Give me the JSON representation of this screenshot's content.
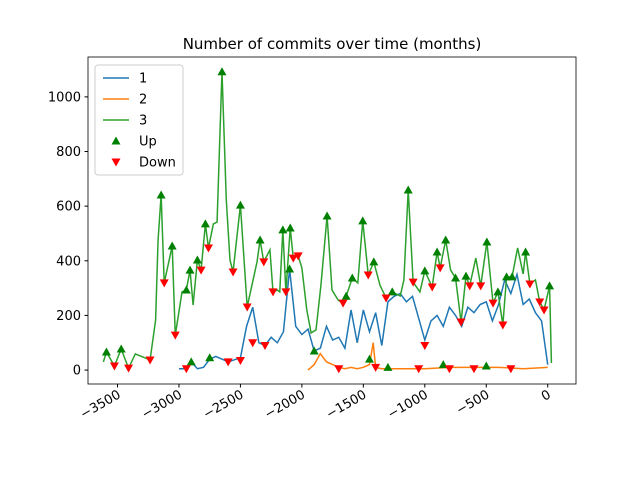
{
  "chart_data": {
    "type": "line",
    "title": "Number of commits over time (months)",
    "xlim": [
      -3740,
      230
    ],
    "ylim": [
      -51,
      1146
    ],
    "xticks": [
      {
        "value": -3500,
        "label": "−3500"
      },
      {
        "value": -3000,
        "label": "−3000"
      },
      {
        "value": -2500,
        "label": "−2500"
      },
      {
        "value": -2000,
        "label": "−2000"
      },
      {
        "value": -1500,
        "label": "−1500"
      },
      {
        "value": -1000,
        "label": "−1000"
      },
      {
        "value": -500,
        "label": "−500"
      },
      0
    ],
    "yticks": [
      0,
      200,
      400,
      600,
      800,
      1000
    ],
    "legend": "upper left",
    "series": [
      {
        "name": "1",
        "kind": "line",
        "color": "#1f77b4",
        "x": [
          -3000,
          -2940,
          -2900,
          -2850,
          -2800,
          -2750,
          -2700,
          -2600,
          -2500,
          -2450,
          -2400,
          -2350,
          -2300,
          -2250,
          -2200,
          -2150,
          -2100,
          -2050,
          -2000,
          -1950,
          -1900,
          -1850,
          -1800,
          -1750,
          -1700,
          -1650,
          -1600,
          -1550,
          -1500,
          -1450,
          -1400,
          -1350,
          -1300,
          -1250,
          -1200,
          -1150,
          -1100,
          -1050,
          -1000,
          -950,
          -900,
          -850,
          -800,
          -750,
          -700,
          -650,
          -600,
          -550,
          -500,
          -450,
          -400,
          -350,
          -300,
          -250,
          -200,
          -150,
          -100,
          -50,
          0
        ],
        "values": [
          5,
          5,
          30,
          5,
          10,
          40,
          50,
          30,
          45,
          160,
          230,
          100,
          90,
          120,
          100,
          140,
          370,
          160,
          130,
          150,
          70,
          80,
          160,
          110,
          120,
          80,
          220,
          100,
          220,
          140,
          210,
          90,
          250,
          270,
          280,
          250,
          270,
          190,
          110,
          180,
          200,
          160,
          230,
          200,
          160,
          230,
          210,
          240,
          250,
          180,
          240,
          330,
          280,
          350,
          240,
          260,
          210,
          180,
          20
        ]
      },
      {
        "name": "2",
        "kind": "line",
        "color": "#ff7f0e",
        "x": [
          -1950,
          -1900,
          -1850,
          -1800,
          -1750,
          -1700,
          -1650,
          -1600,
          -1550,
          -1500,
          -1450,
          -1420,
          -1400,
          -1350,
          -1300,
          -1200,
          -1000,
          -800,
          -600,
          -400,
          -200,
          0
        ],
        "values": [
          0,
          20,
          60,
          30,
          20,
          10,
          5,
          10,
          5,
          10,
          20,
          100,
          10,
          5,
          5,
          5,
          5,
          10,
          10,
          10,
          5,
          10
        ]
      },
      {
        "name": "3",
        "kind": "line",
        "color": "#2ca02c",
        "x": [
          -3615,
          -3590,
          -3525,
          -3470,
          -3410,
          -3355,
          -3235,
          -3190,
          -3170,
          -3145,
          -3120,
          -3055,
          -3030,
          -2975,
          -2940,
          -2910,
          -2885,
          -2850,
          -2820,
          -2785,
          -2760,
          -2720,
          -2690,
          -2650,
          -2615,
          -2585,
          -2560,
          -2500,
          -2445,
          -2365,
          -2340,
          -2310,
          -2260,
          -2235,
          -2200,
          -2180,
          -2155,
          -2130,
          -2095,
          -2070,
          -2030,
          -2000,
          -1960,
          -1925,
          -1885,
          -1845,
          -1795,
          -1755,
          -1705,
          -1665,
          -1640,
          -1590,
          -1545,
          -1505,
          -1460,
          -1415,
          -1365,
          -1315,
          -1265,
          -1200,
          -1170,
          -1135,
          -1095,
          -1040,
          -1000,
          -940,
          -900,
          -875,
          -830,
          -790,
          -750,
          -705,
          -665,
          -635,
          -585,
          -545,
          -495,
          -445,
          -405,
          -365,
          -335,
          -290,
          -245,
          -200,
          -180,
          -145,
          -100,
          -65,
          -30,
          15,
          30
        ],
        "values": [
          30,
          66,
          15,
          77,
          7,
          59,
          37,
          183,
          476,
          641,
          319,
          454,
          128,
          286,
          293,
          366,
          238,
          403,
          366,
          535,
          447,
          535,
          542,
          1092,
          623,
          403,
          359,
          604,
          231,
          396,
          476,
          396,
          440,
          286,
          293,
          286,
          513,
          286,
          520,
          410,
          418,
          374,
          220,
          136,
          147,
          311,
          564,
          293,
          256,
          245,
          270,
          337,
          319,
          546,
          348,
          396,
          311,
          264,
          286,
          271,
          330,
          659,
          322,
          286,
          363,
          304,
          432,
          374,
          476,
          366,
          337,
          176,
          344,
          308,
          410,
          308,
          469,
          245,
          286,
          165,
          341,
          341,
          447,
          352,
          432,
          315,
          330,
          249,
          220,
          308,
          26
        ]
      },
      {
        "name": "Up",
        "kind": "scatter",
        "marker": "up",
        "color": "#008000",
        "x": [
          -3590,
          -3470,
          -3145,
          -3055,
          -2940,
          -2910,
          -2850,
          -2785,
          -2650,
          -2500,
          -2340,
          -2155,
          -2095,
          -1795,
          -1640,
          -1590,
          -1505,
          -1415,
          -1265,
          -1135,
          -1000,
          -900,
          -830,
          -750,
          -665,
          -495,
          -405,
          -335,
          -290,
          -180,
          15,
          -2900,
          -2750,
          -2100,
          -1900,
          -1450,
          -1300,
          -850,
          -500
        ],
        "values": [
          66,
          77,
          641,
          454,
          293,
          366,
          403,
          535,
          1092,
          604,
          476,
          513,
          520,
          564,
          270,
          337,
          546,
          396,
          286,
          659,
          363,
          432,
          476,
          337,
          344,
          469,
          286,
          341,
          341,
          432,
          308,
          30,
          45,
          370,
          70,
          40,
          10,
          20,
          15
        ]
      },
      {
        "name": "Down",
        "kind": "scatter",
        "marker": "down",
        "color": "#ff0000",
        "x": [
          -3525,
          -3410,
          -3235,
          -3120,
          -3030,
          -2820,
          -2760,
          -2560,
          -2445,
          -2310,
          -2235,
          -2130,
          -2070,
          -2030,
          -1665,
          -1460,
          -1315,
          -1095,
          -940,
          -875,
          -705,
          -635,
          -545,
          -445,
          -365,
          -145,
          -65,
          -30,
          -2940,
          -2600,
          -2500,
          -2400,
          -2300,
          -1700,
          -1400,
          -1000,
          -1050,
          -800,
          -600,
          -300
        ],
        "values": [
          15,
          7,
          37,
          319,
          128,
          366,
          447,
          359,
          231,
          396,
          286,
          286,
          410,
          418,
          245,
          348,
          264,
          322,
          304,
          374,
          176,
          308,
          308,
          245,
          165,
          315,
          249,
          220,
          5,
          30,
          35,
          100,
          90,
          5,
          10,
          90,
          5,
          5,
          5,
          5
        ]
      }
    ]
  }
}
